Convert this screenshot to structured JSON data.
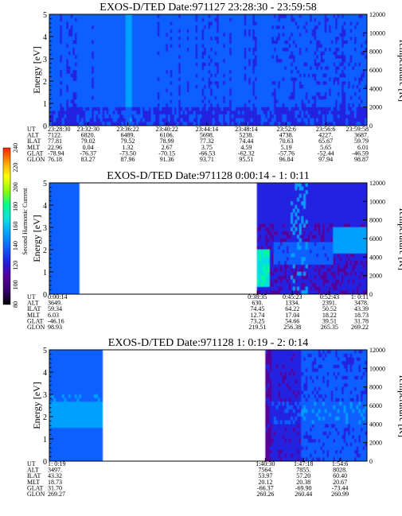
{
  "colors": {
    "background": "#0000cc",
    "scale": [
      "#000000",
      "#3a0070",
      "#55009a",
      "#2020e0",
      "#1060ff",
      "#00a0ff",
      "#00e0e0",
      "#00ff90",
      "#90ff00",
      "#ffff00",
      "#ffa000",
      "#ff2000"
    ]
  },
  "colorbar": {
    "label": "Second Harmonic Current",
    "ticks": [
      "80",
      "100",
      "120",
      "140",
      "160",
      "180",
      "200",
      "220",
      "240"
    ]
  },
  "chart_data": [
    {
      "type": "heatmap",
      "title": "EXOS-D/TED   Date:971127  23:28:30 - 23:59:58",
      "ylabel": "Energy [eV]",
      "y2label": "Temperature [K]",
      "ylim": [
        0,
        5
      ],
      "y_ticks": [
        "0",
        "1",
        "2",
        "3",
        "4",
        "5"
      ],
      "y2lim": [
        0,
        12000
      ],
      "y2_ticks": [
        "0",
        "2000",
        "4000",
        "6000",
        "8000",
        "10000",
        "12000"
      ],
      "gaps": [],
      "ephemeris": {
        "labels": [
          "UT",
          "ALT",
          "ILAT",
          "MLT",
          "GLAT",
          "GLON"
        ],
        "columns": [
          {
            "x": 0.0,
            "values": [
              "23:28:30",
              "7122.",
              "77.81",
              "22.96",
              "-78.94",
              "76.18"
            ]
          },
          {
            "x": 0.122,
            "values": [
              "23:32:30",
              "6820.",
              "79.02",
              "0.04",
              "-76.37",
              "83.27"
            ]
          },
          {
            "x": 0.247,
            "values": [
              "23:36:22",
              "6489.",
              "79.52",
              "1.32",
              "-73.50",
              "87.96"
            ]
          },
          {
            "x": 0.37,
            "values": [
              "23:40:22",
              "6106.",
              "78.99",
              "2.67",
              "-70.15",
              "91.36"
            ]
          },
          {
            "x": 0.496,
            "values": [
              "23:44:14",
              "5698.",
              "77.32",
              "3.75",
              "-66.53",
              "93.71"
            ]
          },
          {
            "x": 0.62,
            "values": [
              "23:48:14",
              "5238.",
              "74.44",
              "4.59",
              "-62.32",
              "95.51"
            ]
          },
          {
            "x": 0.746,
            "values": [
              "23:52:6",
              "4738.",
              "70.63",
              "5.19",
              "-57.76",
              "96.84"
            ]
          },
          {
            "x": 0.87,
            "values": [
              "23:56:6",
              "4227.",
              "65.67",
              "5.65",
              "-52.44",
              "97.94"
            ]
          },
          {
            "x": 1.0,
            "values": [
              "23:59:58",
              "3687.",
              "59.79",
              "6.01",
              "-46.59",
              "98.87"
            ]
          }
        ]
      }
    },
    {
      "type": "heatmap",
      "title": "EXOS-D/TED   Date:971128  0:00:14 - 1: 0:11",
      "ylabel": "Energy [eV]",
      "y2label": "Temperature [K]",
      "ylim": [
        0,
        5
      ],
      "y_ticks": [
        "0",
        "1",
        "2",
        "3",
        "4",
        "5"
      ],
      "y2lim": [
        0,
        12000
      ],
      "y2_ticks": [
        "0",
        "2000",
        "4000",
        "6000",
        "8000",
        "10000",
        "12000"
      ],
      "gaps": [
        [
          0.095,
          0.655
        ]
      ],
      "ephemeris": {
        "labels": [
          "UT",
          "ALT",
          "ILAT",
          "MLT",
          "GLAT",
          "GLON"
        ],
        "columns": [
          {
            "x": 0.0,
            "values": [
              "0:00:14",
              "3649.",
              "59.34",
              "6.03",
              "-46.16",
              "98.93"
            ]
          },
          {
            "x": 0.655,
            "values": [
              "0:38:35",
              "630.",
              "74.45",
              "12.74",
              "73.25",
              "219.51"
            ]
          },
          {
            "x": 0.765,
            "values": [
              "0:45:23",
              "1334.",
              "64.22",
              "17.04",
              "54.66",
              "256.38"
            ]
          },
          {
            "x": 0.882,
            "values": [
              "0:52:43",
              "2391.",
              "50.52",
              "18.22",
              "39.51",
              "265.35"
            ]
          },
          {
            "x": 1.0,
            "values": [
              "1: 0:11",
              "3478.",
              "43.39",
              "18.73",
              "31.78",
              "269.22"
            ]
          }
        ]
      }
    },
    {
      "type": "heatmap",
      "title": "EXOS-D/TED   Date:971128  1: 0:19 - 2: 0:14",
      "ylabel": "Energy [eV]",
      "y2label": "Temperature [K]",
      "ylim": [
        0,
        5
      ],
      "y_ticks": [
        "0",
        "1",
        "2",
        "3",
        "4",
        "5"
      ],
      "y2lim": [
        0,
        12000
      ],
      "y2_ticks": [
        "0",
        "2000",
        "4000",
        "6000",
        "8000",
        "10000",
        "12000"
      ],
      "gaps": [
        [
          0.165,
          0.68
        ]
      ],
      "ephemeris": {
        "labels": [
          "UT",
          "ALT",
          "ILAT",
          "MLT",
          "GLAT",
          "GLON"
        ],
        "columns": [
          {
            "x": 0.0,
            "values": [
              "1: 0:19",
              "3497.",
              "43.32",
              "18.73",
              "31.70",
              "269.27"
            ]
          },
          {
            "x": 0.68,
            "values": [
              "1:40:30",
              "7564.",
              "53.97",
              "20.12",
              "-66.37",
              "260.26"
            ]
          },
          {
            "x": 0.8,
            "values": [
              "1:47:18",
              "7855.",
              "57.20",
              "20.38",
              "-69.90",
              "260.44"
            ]
          },
          {
            "x": 0.915,
            "values": [
              "1:54:6",
              "8028.",
              "60.40",
              "20.67",
              "-73.44",
              "260.99"
            ]
          }
        ]
      }
    }
  ]
}
